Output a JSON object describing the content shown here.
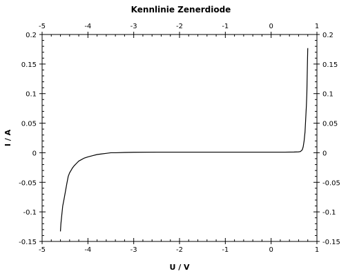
{
  "chart_data": {
    "type": "line",
    "title": "Kennlinie Zenerdiode",
    "xlabel": "U / V",
    "ylabel": "I / A",
    "xlim": [
      -5,
      1
    ],
    "ylim": [
      -0.15,
      0.2
    ],
    "xticks": [
      -5,
      -4,
      -3,
      -2,
      -1,
      0,
      1
    ],
    "yticks": [
      -0.15,
      -0.1,
      -0.05,
      0,
      0.05,
      0.1,
      0.15,
      0.2
    ],
    "xtick_labels": [
      "-5",
      "-4",
      "-3",
      "-2",
      "-1",
      "0",
      "1"
    ],
    "ytick_labels": [
      "-0.15",
      "-0.1",
      "-0.05",
      "0",
      "0.05",
      "0.1",
      "0.15",
      "0.2"
    ],
    "grid": false,
    "line_color": "#000000",
    "series": [
      {
        "x": [
          -4.6,
          -4.59,
          -4.57,
          -4.55,
          -4.52,
          -4.49,
          -4.46,
          -4.43,
          -4.4,
          -4.37,
          -4.34,
          -4.3,
          -4.25,
          -4.2,
          -4.15,
          -4.08,
          -4.0,
          -3.9,
          -3.8,
          -3.7,
          -3.6,
          -3.5,
          -3.4,
          -3.2,
          -3.0,
          -2.5,
          -2.0,
          -1.5,
          -1.0,
          -0.5,
          0.0,
          0.3,
          0.5,
          0.6,
          0.64,
          0.68,
          0.7,
          0.72,
          0.74,
          0.75,
          0.76,
          0.77,
          0.78,
          0.785,
          0.79,
          0.795,
          0.8
        ],
        "y": [
          -0.133,
          -0.12,
          -0.105,
          -0.09,
          -0.078,
          -0.065,
          -0.052,
          -0.04,
          -0.034,
          -0.03,
          -0.026,
          -0.022,
          -0.018,
          -0.014,
          -0.012,
          -0.009,
          -0.007,
          -0.005,
          -0.003,
          -0.002,
          -0.001,
          0.0,
          0.0,
          0.0005,
          0.0008,
          0.001,
          0.001,
          0.001,
          0.001,
          0.001,
          0.001,
          0.001,
          0.0012,
          0.0015,
          0.002,
          0.005,
          0.01,
          0.02,
          0.035,
          0.05,
          0.065,
          0.08,
          0.1,
          0.12,
          0.14,
          0.16,
          0.177
        ]
      }
    ]
  }
}
